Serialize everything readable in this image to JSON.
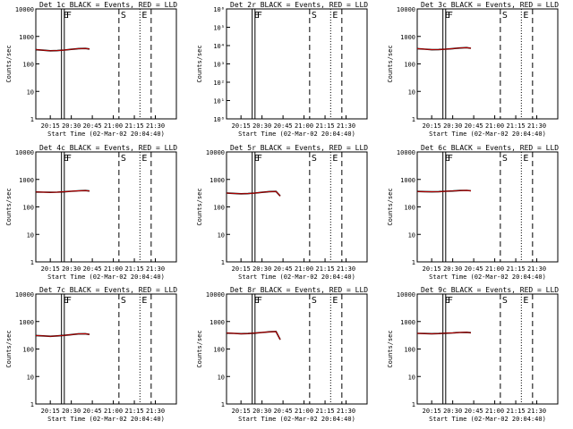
{
  "chart_data": [
    {
      "type": "line",
      "title": "Det 1c BLACK = Events, RED = LLD",
      "xlabel": "Start Time (02-Mar-02 20:04:40)",
      "ylabel": "Counts/sec",
      "yscale": "log",
      "ylim": [
        1,
        10000
      ],
      "yticks": [
        "1",
        "10",
        "100",
        "1000",
        "10000"
      ],
      "xlim": [
        "20:04:40",
        "21:45:00"
      ],
      "xticks": [
        "20:15",
        "20:30",
        "20:45",
        "21:00",
        "21:15",
        "21:30"
      ],
      "x": [
        "20:04:40",
        "20:10",
        "20:15",
        "20:20",
        "20:25",
        "20:30",
        "20:35",
        "20:40",
        "20:43"
      ],
      "series": [
        {
          "name": "BLACK = Events",
          "color": "#000000",
          "values": [
            330,
            315,
            300,
            305,
            320,
            340,
            360,
            365,
            350
          ]
        },
        {
          "name": "RED = LLD",
          "color": "#cc0000",
          "values": [
            330,
            315,
            300,
            305,
            320,
            340,
            360,
            365,
            350
          ]
        }
      ],
      "markers": [
        {
          "time": "20:23",
          "style": "solid",
          "label": "E"
        },
        {
          "time": "20:25",
          "style": "solid",
          "label": "F"
        },
        {
          "time": "21:04",
          "style": "dashed",
          "label": "S"
        },
        {
          "time": "21:19",
          "style": "dotted",
          "label": "E"
        },
        {
          "time": "21:27",
          "style": "dashed",
          "label": ""
        }
      ]
    },
    {
      "type": "line",
      "title": "Det 2r BLACK = Events, RED = LLD",
      "xlabel": "Start Time (02-Mar-02 20:04:40)",
      "ylabel": "Counts/sec",
      "yscale": "log",
      "ylim": [
        1,
        1000000
      ],
      "yticks": [
        "10⁰",
        "10¹",
        "10²",
        "10³",
        "10⁴",
        "10⁵",
        "10⁶"
      ],
      "xlim": [
        "20:04:40",
        "21:45:00"
      ],
      "xticks": [
        "20:15",
        "20:30",
        "20:45",
        "21:00",
        "21:15",
        "21:30"
      ],
      "x": [],
      "series": [],
      "markers": [
        {
          "time": "20:23",
          "style": "solid",
          "label": "E"
        },
        {
          "time": "20:25",
          "style": "solid",
          "label": "F"
        },
        {
          "time": "21:04",
          "style": "dashed",
          "label": "S"
        },
        {
          "time": "21:19",
          "style": "dotted",
          "label": "E"
        },
        {
          "time": "21:27",
          "style": "dashed",
          "label": ""
        }
      ]
    },
    {
      "type": "line",
      "title": "Det 3c BLACK = Events, RED = LLD",
      "xlabel": "Start Time (02-Mar-02 20:04:40)",
      "ylabel": "Counts/sec",
      "yscale": "log",
      "ylim": [
        1,
        10000
      ],
      "yticks": [
        "1",
        "10",
        "100",
        "1000",
        "10000"
      ],
      "xlim": [
        "20:04:40",
        "21:45:00"
      ],
      "xticks": [
        "20:15",
        "20:30",
        "20:45",
        "21:00",
        "21:15",
        "21:30"
      ],
      "x": [
        "20:04:40",
        "20:10",
        "20:15",
        "20:20",
        "20:25",
        "20:30",
        "20:35",
        "20:40",
        "20:43"
      ],
      "series": [
        {
          "name": "BLACK = Events",
          "color": "#000000",
          "values": [
            360,
            345,
            330,
            335,
            345,
            360,
            380,
            390,
            370
          ]
        },
        {
          "name": "RED = LLD",
          "color": "#cc0000",
          "values": [
            360,
            345,
            330,
            335,
            345,
            360,
            380,
            390,
            370
          ]
        }
      ],
      "markers": [
        {
          "time": "20:23",
          "style": "solid",
          "label": "E"
        },
        {
          "time": "20:25",
          "style": "solid",
          "label": "F"
        },
        {
          "time": "21:04",
          "style": "dashed",
          "label": "S"
        },
        {
          "time": "21:19",
          "style": "dotted",
          "label": "E"
        },
        {
          "time": "21:27",
          "style": "dashed",
          "label": ""
        }
      ]
    },
    {
      "type": "line",
      "title": "Det 4c BLACK = Events, RED = LLD",
      "xlabel": "Start Time (02-Mar-02 20:04:40)",
      "ylabel": "Counts/sec",
      "yscale": "log",
      "ylim": [
        1,
        10000
      ],
      "yticks": [
        "1",
        "10",
        "100",
        "1000",
        "10000"
      ],
      "xlim": [
        "20:04:40",
        "21:45:00"
      ],
      "xticks": [
        "20:15",
        "20:30",
        "20:45",
        "21:00",
        "21:15",
        "21:30"
      ],
      "x": [
        "20:04:40",
        "20:10",
        "20:15",
        "20:20",
        "20:25",
        "20:30",
        "20:35",
        "20:40",
        "20:43"
      ],
      "series": [
        {
          "name": "BLACK = Events",
          "color": "#000000",
          "values": [
            350,
            345,
            340,
            345,
            355,
            370,
            385,
            395,
            380
          ]
        },
        {
          "name": "RED = LLD",
          "color": "#cc0000",
          "values": [
            350,
            345,
            340,
            345,
            355,
            370,
            385,
            395,
            380
          ]
        }
      ],
      "markers": [
        {
          "time": "20:23",
          "style": "solid",
          "label": "E"
        },
        {
          "time": "20:25",
          "style": "solid",
          "label": "F"
        },
        {
          "time": "21:04",
          "style": "dashed",
          "label": "S"
        },
        {
          "time": "21:19",
          "style": "dotted",
          "label": "E"
        },
        {
          "time": "21:27",
          "style": "dashed",
          "label": ""
        }
      ]
    },
    {
      "type": "line",
      "title": "Det 5r BLACK = Events, RED = LLD",
      "xlabel": "Start Time (02-Mar-02 20:04:40)",
      "ylabel": "Counts/sec",
      "yscale": "log",
      "ylim": [
        1,
        10000
      ],
      "yticks": [
        "1",
        "10",
        "100",
        "1000",
        "10000"
      ],
      "xlim": [
        "20:04:40",
        "21:45:00"
      ],
      "xticks": [
        "20:15",
        "20:30",
        "20:45",
        "21:00",
        "21:15",
        "21:30"
      ],
      "x": [
        "20:04:40",
        "20:10",
        "20:15",
        "20:20",
        "20:25",
        "20:30",
        "20:35",
        "20:40",
        "20:43"
      ],
      "series": [
        {
          "name": "BLACK = Events",
          "color": "#000000",
          "values": [
            320,
            310,
            300,
            305,
            320,
            340,
            360,
            365,
            250
          ]
        },
        {
          "name": "RED = LLD",
          "color": "#cc0000",
          "values": [
            320,
            310,
            300,
            305,
            320,
            340,
            360,
            365,
            250
          ]
        }
      ],
      "markers": [
        {
          "time": "20:23",
          "style": "solid",
          "label": "E"
        },
        {
          "time": "20:25",
          "style": "solid",
          "label": "F"
        },
        {
          "time": "21:04",
          "style": "dashed",
          "label": "S"
        },
        {
          "time": "21:19",
          "style": "dotted",
          "label": "E"
        },
        {
          "time": "21:27",
          "style": "dashed",
          "label": ""
        }
      ]
    },
    {
      "type": "line",
      "title": "Det 6c BLACK = Events, RED = LLD",
      "xlabel": "Start Time (02-Mar-02 20:04:40)",
      "ylabel": "Counts/sec",
      "yscale": "log",
      "ylim": [
        1,
        10000
      ],
      "yticks": [
        "1",
        "10",
        "100",
        "1000",
        "10000"
      ],
      "xlim": [
        "20:04:40",
        "21:45:00"
      ],
      "xticks": [
        "20:15",
        "20:30",
        "20:45",
        "21:00",
        "21:15",
        "21:30"
      ],
      "x": [
        "20:04:40",
        "20:10",
        "20:15",
        "20:20",
        "20:25",
        "20:30",
        "20:35",
        "20:40",
        "20:43"
      ],
      "series": [
        {
          "name": "BLACK = Events",
          "color": "#000000",
          "values": [
            365,
            360,
            355,
            360,
            370,
            380,
            395,
            400,
            385
          ]
        },
        {
          "name": "RED = LLD",
          "color": "#cc0000",
          "values": [
            365,
            360,
            355,
            360,
            370,
            380,
            395,
            400,
            385
          ]
        }
      ],
      "markers": [
        {
          "time": "20:23",
          "style": "solid",
          "label": "E"
        },
        {
          "time": "20:25",
          "style": "solid",
          "label": "F"
        },
        {
          "time": "21:04",
          "style": "dashed",
          "label": "S"
        },
        {
          "time": "21:19",
          "style": "dotted",
          "label": "E"
        },
        {
          "time": "21:27",
          "style": "dashed",
          "label": ""
        }
      ]
    },
    {
      "type": "line",
      "title": "Det 7c BLACK = Events, RED = LLD",
      "xlabel": "Start Time (02-Mar-02 20:04:40)",
      "ylabel": "Counts/sec",
      "yscale": "log",
      "ylim": [
        1,
        10000
      ],
      "yticks": [
        "1",
        "10",
        "100",
        "1000",
        "10000"
      ],
      "xlim": [
        "20:04:40",
        "21:45:00"
      ],
      "xticks": [
        "20:15",
        "20:30",
        "20:45",
        "21:00",
        "21:15",
        "21:30"
      ],
      "x": [
        "20:04:40",
        "20:10",
        "20:15",
        "20:20",
        "20:25",
        "20:30",
        "20:35",
        "20:40",
        "20:43"
      ],
      "series": [
        {
          "name": "BLACK = Events",
          "color": "#000000",
          "values": [
            310,
            300,
            290,
            300,
            315,
            335,
            355,
            360,
            340
          ]
        },
        {
          "name": "RED = LLD",
          "color": "#cc0000",
          "values": [
            310,
            300,
            290,
            300,
            315,
            335,
            355,
            360,
            340
          ]
        }
      ],
      "markers": [
        {
          "time": "20:23",
          "style": "solid",
          "label": "E"
        },
        {
          "time": "20:25",
          "style": "solid",
          "label": "F"
        },
        {
          "time": "21:04",
          "style": "dashed",
          "label": "S"
        },
        {
          "time": "21:19",
          "style": "dotted",
          "label": "E"
        },
        {
          "time": "21:27",
          "style": "dashed",
          "label": ""
        }
      ]
    },
    {
      "type": "line",
      "title": "Det 8r BLACK = Events, RED = LLD",
      "xlabel": "Start Time (02-Mar-02 20:04:40)",
      "ylabel": "Counts/sec",
      "yscale": "log",
      "ylim": [
        1,
        10000
      ],
      "yticks": [
        "1",
        "10",
        "100",
        "1000",
        "10000"
      ],
      "xlim": [
        "20:04:40",
        "21:45:00"
      ],
      "xticks": [
        "20:15",
        "20:30",
        "20:45",
        "21:00",
        "21:15",
        "21:30"
      ],
      "x": [
        "20:04:40",
        "20:10",
        "20:15",
        "20:20",
        "20:25",
        "20:30",
        "20:35",
        "20:40",
        "20:43"
      ],
      "series": [
        {
          "name": "BLACK = Events",
          "color": "#000000",
          "values": [
            380,
            370,
            360,
            365,
            380,
            400,
            420,
            430,
            220
          ]
        },
        {
          "name": "RED = LLD",
          "color": "#cc0000",
          "values": [
            380,
            370,
            360,
            365,
            380,
            400,
            420,
            430,
            220
          ]
        }
      ],
      "markers": [
        {
          "time": "20:23",
          "style": "solid",
          "label": "E"
        },
        {
          "time": "20:25",
          "style": "solid",
          "label": "F"
        },
        {
          "time": "21:04",
          "style": "dashed",
          "label": "S"
        },
        {
          "time": "21:19",
          "style": "dotted",
          "label": "E"
        },
        {
          "time": "21:27",
          "style": "dashed",
          "label": ""
        }
      ]
    },
    {
      "type": "line",
      "title": "Det 9c BLACK = Events, RED = LLD",
      "xlabel": "Start Time (02-Mar-02 20:04:40)",
      "ylabel": "Counts/sec",
      "yscale": "log",
      "ylim": [
        1,
        10000
      ],
      "yticks": [
        "1",
        "10",
        "100",
        "1000",
        "10000"
      ],
      "xlim": [
        "20:04:40",
        "21:45:00"
      ],
      "xticks": [
        "20:15",
        "20:30",
        "20:45",
        "21:00",
        "21:15",
        "21:30"
      ],
      "x": [
        "20:04:40",
        "20:10",
        "20:15",
        "20:20",
        "20:25",
        "20:30",
        "20:35",
        "20:40",
        "20:43"
      ],
      "series": [
        {
          "name": "BLACK = Events",
          "color": "#000000",
          "values": [
            370,
            365,
            360,
            365,
            375,
            385,
            400,
            405,
            390
          ]
        },
        {
          "name": "RED = LLD",
          "color": "#cc0000",
          "values": [
            370,
            365,
            360,
            365,
            375,
            385,
            400,
            405,
            390
          ]
        }
      ],
      "markers": [
        {
          "time": "20:23",
          "style": "solid",
          "label": "E"
        },
        {
          "time": "20:25",
          "style": "solid",
          "label": "F"
        },
        {
          "time": "21:04",
          "style": "dashed",
          "label": "S"
        },
        {
          "time": "21:19",
          "style": "dotted",
          "label": "E"
        },
        {
          "time": "21:27",
          "style": "dashed",
          "label": ""
        }
      ]
    }
  ]
}
